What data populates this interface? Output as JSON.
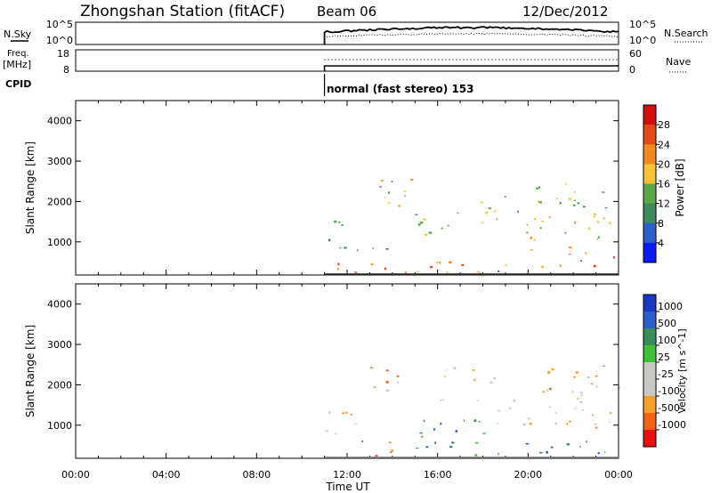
{
  "header": {
    "station": "Zhongshan Station (fitACF)",
    "beam": "Beam 06",
    "date": "12/Dec/2012"
  },
  "strips": {
    "nsky_label": "N.Sky",
    "nsearch_label": "N.Search",
    "freq_label_line1": "Freq.",
    "freq_label_line2": "[MHz]",
    "nave_label": "Nave",
    "cpid_label": "CPID",
    "cpid_text": "normal (fast stereo) 153",
    "noise_ticks_left": [
      "10^5",
      "10^0"
    ],
    "noise_ticks_right": [
      "10^5",
      "10^0"
    ],
    "freq_ticks": [
      "18",
      "8"
    ],
    "nave_ticks": [
      "60",
      "0"
    ]
  },
  "x_axis": {
    "label": "Time UT",
    "ticks": [
      "00:00",
      "04:00",
      "08:00",
      "12:00",
      "16:00",
      "20:00",
      "00:00"
    ]
  },
  "colors": {
    "power": [
      "#0b1cf5",
      "#2f5fc8",
      "#3f8a5c",
      "#5aa84a",
      "#f5c23a",
      "#f08a1e",
      "#e24a18",
      "#d21010"
    ],
    "velocity": [
      "#e81010",
      "#f06218",
      "#f5a028",
      "#c8c8c4",
      "#c8c8c4",
      "#3fbf3a",
      "#3a8a5a",
      "#2f5fc8",
      "#1838c0"
    ]
  },
  "chart_data": [
    {
      "type": "heatmap",
      "title": "",
      "xlabel": "",
      "ylabel": "Slant Range [km]",
      "xlim": [
        0,
        24
      ],
      "ylim": [
        180,
        4500
      ],
      "y_ticks": [
        "1000",
        "2000",
        "3000",
        "4000"
      ],
      "colorbar": {
        "label": "Power [dB]",
        "ticks": [
          "4",
          "8",
          "12",
          "16",
          "20",
          "24",
          "28"
        ],
        "range": [
          0,
          30
        ]
      },
      "data_start_hour": 11,
      "blobs": [
        {
          "t0": 11.0,
          "t1": 11.6,
          "r0": 2000,
          "r1": 2300,
          "level": 3
        },
        {
          "t0": 11.0,
          "t1": 14.5,
          "r0": 700,
          "r1": 1100,
          "level": 3
        },
        {
          "t0": 11.0,
          "t1": 12.5,
          "r0": 1300,
          "r1": 1600,
          "level": 2
        },
        {
          "t0": 11.5,
          "t1": 21.5,
          "r0": 250,
          "r1": 550,
          "level": 5
        },
        {
          "t0": 12.0,
          "t1": 13.0,
          "r0": 200,
          "r1": 350,
          "level": 7
        },
        {
          "t0": 17.2,
          "t1": 18.8,
          "r0": 200,
          "r1": 350,
          "level": 7
        },
        {
          "t0": 13.2,
          "t1": 15.0,
          "r0": 1800,
          "r1": 2600,
          "level": 4
        },
        {
          "t0": 15.0,
          "t1": 17.5,
          "r0": 1200,
          "r1": 2200,
          "level": 3
        },
        {
          "t0": 17.5,
          "t1": 19.0,
          "r0": 1500,
          "r1": 2300,
          "level": 4
        },
        {
          "t0": 19.5,
          "t1": 24.0,
          "r0": 800,
          "r1": 1800,
          "level": 4
        },
        {
          "t0": 20.0,
          "t1": 23.5,
          "r0": 1800,
          "r1": 2500,
          "level": 3
        },
        {
          "t0": 21.0,
          "t1": 23.8,
          "r0": 400,
          "r1": 900,
          "level": 6
        }
      ]
    },
    {
      "type": "heatmap",
      "title": "",
      "xlabel": "Time UT",
      "ylabel": "Slant Range [km]",
      "xlim": [
        0,
        24
      ],
      "ylim": [
        180,
        4500
      ],
      "y_ticks": [
        "1000",
        "2000",
        "3000",
        "4000"
      ],
      "colorbar": {
        "label": "Velocity [m s^-1]",
        "ticks": [
          "1000",
          "500",
          "100",
          "25",
          "-25",
          "-100",
          "-500",
          "-1000"
        ]
      },
      "data_start_hour": 11,
      "blobs": [
        {
          "t0": 11.0,
          "t1": 11.6,
          "r0": 1900,
          "r1": 2300,
          "level": 3
        },
        {
          "t0": 11.0,
          "t1": 12.8,
          "r0": 700,
          "r1": 1400,
          "level": 3
        },
        {
          "t0": 11.5,
          "t1": 14.0,
          "r0": 250,
          "r1": 650,
          "level": 1
        },
        {
          "t0": 14.0,
          "t1": 24.0,
          "r0": 250,
          "r1": 650,
          "level": 6
        },
        {
          "t0": 13.0,
          "t1": 14.5,
          "r0": 1800,
          "r1": 2600,
          "level": 2
        },
        {
          "t0": 16.0,
          "t1": 18.5,
          "r0": 1600,
          "r1": 2500,
          "level": 3
        },
        {
          "t0": 18.5,
          "t1": 24.0,
          "r0": 900,
          "r1": 2000,
          "level": 3
        },
        {
          "t0": 20.5,
          "t1": 23.5,
          "r0": 1800,
          "r1": 2500,
          "level": 2
        },
        {
          "t0": 15.0,
          "t1": 18.0,
          "r0": 700,
          "r1": 1200,
          "level": 6
        }
      ]
    }
  ]
}
